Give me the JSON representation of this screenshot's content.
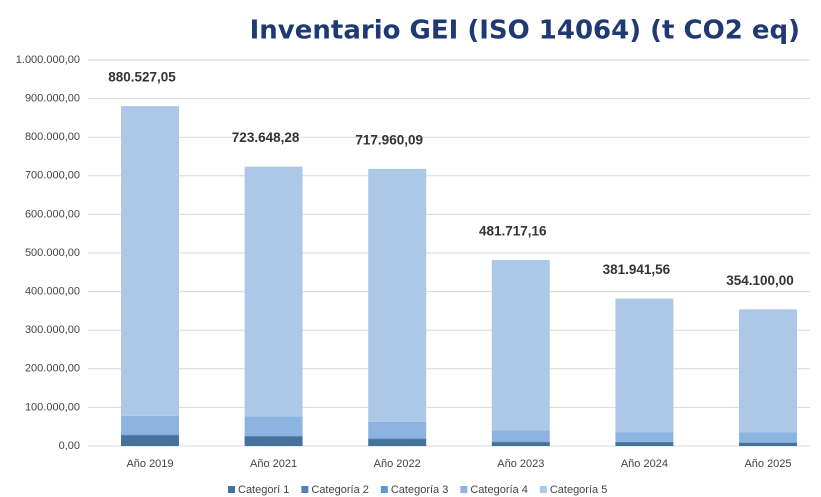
{
  "chart_data": {
    "type": "stacked_bar",
    "title": "Inventario GEI (ISO 14064) (t CO2 eq)",
    "categories": [
      "Año 2019",
      "Año 2021",
      "Año 2022",
      "Año 2023",
      "Año 2024",
      "Año 2025"
    ],
    "series": [
      {
        "name": "Categorí 1",
        "color": "#44729c",
        "values": [
          28000,
          25000,
          18000,
          10000,
          9000,
          8000
        ]
      },
      {
        "name": "Categoría 2",
        "color": "#4f81bd",
        "values": [
          1500,
          1500,
          1500,
          1500,
          1500,
          1500
        ]
      },
      {
        "name": "Categoría 3",
        "color": "#5b9bd5",
        "values": [
          500,
          500,
          500,
          500,
          500,
          500
        ]
      },
      {
        "name": "Categoría 4",
        "color": "#8db4e0",
        "values": [
          48000,
          50000,
          43000,
          28000,
          25000,
          25000
        ]
      },
      {
        "name": "Categoría 5",
        "color": "#adc8e6",
        "values": [
          802527.05,
          646648.28,
          654960.09,
          441717.16,
          345941.56,
          319100.0
        ]
      }
    ],
    "totals": [
      880527.05,
      723648.28,
      717960.09,
      481717.16,
      381941.56,
      354100.0
    ],
    "total_labels": [
      "880.527,05",
      "723.648,28",
      "717.960,09",
      "481.717,16",
      "381.941,56",
      "354.100,00"
    ],
    "ylim": [
      0,
      1000000
    ],
    "yticks": [
      {
        "value": 0,
        "label": "0,00"
      },
      {
        "value": 100000,
        "label": "100.000,00"
      },
      {
        "value": 200000,
        "label": "200.000,00"
      },
      {
        "value": 300000,
        "label": "300.000,00"
      },
      {
        "value": 400000,
        "label": "400.000,00"
      },
      {
        "value": 500000,
        "label": "500.000,00"
      },
      {
        "value": 600000,
        "label": "600.000,00"
      },
      {
        "value": 700000,
        "label": "700.000,00"
      },
      {
        "value": 800000,
        "label": "800.000,00"
      },
      {
        "value": 900000,
        "label": "900.000,00"
      },
      {
        "value": 1000000,
        "label": "1.000.000,00"
      }
    ],
    "grid": true,
    "legend": "bottom"
  }
}
